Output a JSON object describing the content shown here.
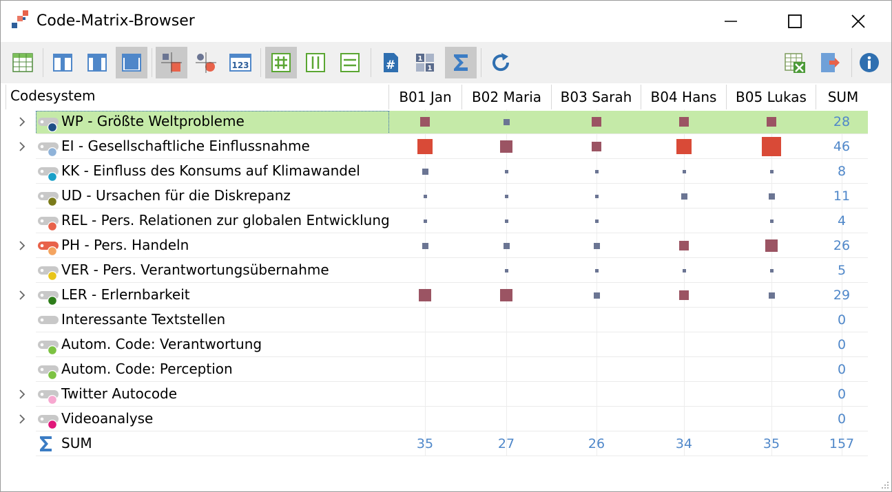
{
  "window": {
    "title": "Code-Matrix-Browser"
  },
  "colors": {
    "sum_text": "#4f87c9",
    "highlight": "#c5eaa8",
    "mark_small": "#6b7593",
    "mark_medium": "#9b5463",
    "mark_large": "#d94a37"
  },
  "toolbar": {
    "buttons": [
      {
        "name": "table-icon"
      },
      {
        "name": "column-left-icon"
      },
      {
        "name": "column-center-icon"
      },
      {
        "name": "column-wide-icon"
      },
      {
        "name": "squares-icon"
      },
      {
        "name": "circles-icon"
      },
      {
        "name": "numbers-123-icon"
      },
      {
        "name": "hash-grid-icon"
      },
      {
        "name": "columns-icon"
      },
      {
        "name": "rows-icon"
      },
      {
        "name": "hash-doc-icon"
      },
      {
        "name": "one-one-icon"
      },
      {
        "name": "sigma-icon"
      },
      {
        "name": "refresh-icon"
      },
      {
        "name": "excel-export-icon"
      },
      {
        "name": "exit-icon"
      },
      {
        "name": "info-icon"
      }
    ],
    "label_123": "123"
  },
  "header": {
    "codesystem": "Codesystem",
    "columns": [
      "B01 Jan",
      "B02 Maria",
      "B03 Sarah",
      "B04 Hans",
      "B05 Lukas"
    ],
    "sum": "SUM"
  },
  "rows": [
    {
      "label": "WP - Größte Weltprobleme",
      "expandable": true,
      "dot": "#1e4f86",
      "tag": "#c8c8c8",
      "values": [
        2,
        1,
        2,
        2,
        2
      ],
      "sum": "28",
      "highlight": true
    },
    {
      "label": "EI - Gesellschaftliche Einflussnahme",
      "expandable": true,
      "dot": "#8fb3d9",
      "tag": "#c8c8c8",
      "values": [
        4,
        3,
        2,
        4,
        5
      ],
      "sum": "46"
    },
    {
      "label": "KK - Einfluss des Konsums auf Klimawandel",
      "expandable": false,
      "dot": "#1aa0c8",
      "tag": "#c8c8c8",
      "values": [
        1,
        0,
        0,
        0,
        0
      ],
      "sum": "8"
    },
    {
      "label": "UD - Ursachen für die Diskrepanz",
      "expandable": false,
      "dot": "#7a7a1a",
      "tag": "#c8c8c8",
      "values": [
        0,
        0,
        0,
        1,
        1
      ],
      "sum": "11"
    },
    {
      "label": "REL - Pers. Relationen zur globalen Entwicklung",
      "expandable": false,
      "dot": "#e8624a",
      "tag": "#c8c8c8",
      "values": [
        0,
        0,
        0,
        -1,
        0
      ],
      "sum": "4"
    },
    {
      "label": "PH - Pers. Handeln",
      "expandable": true,
      "dot": "#f4a460",
      "tag": "#e8624a",
      "values": [
        1,
        1,
        1,
        2,
        3
      ],
      "sum": "26"
    },
    {
      "label": "VER - Pers. Verantwortungsübernahme",
      "expandable": false,
      "dot": "#e8c51a",
      "tag": "#c8c8c8",
      "values": [
        -1,
        0,
        0,
        0,
        0
      ],
      "sum": "5"
    },
    {
      "label": "LER - Erlernbarkeit",
      "expandable": true,
      "dot": "#2e7d1a",
      "tag": "#c8c8c8",
      "values": [
        3,
        3,
        1,
        2,
        1
      ],
      "sum": "29"
    },
    {
      "label": "Interessante Textstellen",
      "expandable": false,
      "dot": "",
      "tag": "#c8c8c8",
      "values": [
        -1,
        -1,
        -1,
        -1,
        -1
      ],
      "sum": "0"
    },
    {
      "label": "Autom. Code: Verantwortung",
      "expandable": false,
      "dot": "#7cc242",
      "tag": "#c8c8c8",
      "values": [
        -1,
        -1,
        -1,
        -1,
        -1
      ],
      "sum": "0"
    },
    {
      "label": "Autom. Code: Perception",
      "expandable": false,
      "dot": "#7cc242",
      "tag": "#c8c8c8",
      "values": [
        -1,
        -1,
        -1,
        -1,
        -1
      ],
      "sum": "0"
    },
    {
      "label": "Twitter Autocode",
      "expandable": true,
      "dot": "#f7a8d0",
      "tag": "#c8c8c8",
      "values": [
        -1,
        -1,
        -1,
        -1,
        -1
      ],
      "sum": "0"
    },
    {
      "label": "Videoanalyse",
      "expandable": true,
      "dot": "#e0187a",
      "tag": "#c8c8c8",
      "values": [
        -1,
        -1,
        -1,
        -1,
        -1
      ],
      "sum": "0"
    }
  ],
  "sum_row": {
    "label": "SUM",
    "values": [
      "35",
      "27",
      "26",
      "34",
      "35"
    ],
    "total": "157"
  }
}
